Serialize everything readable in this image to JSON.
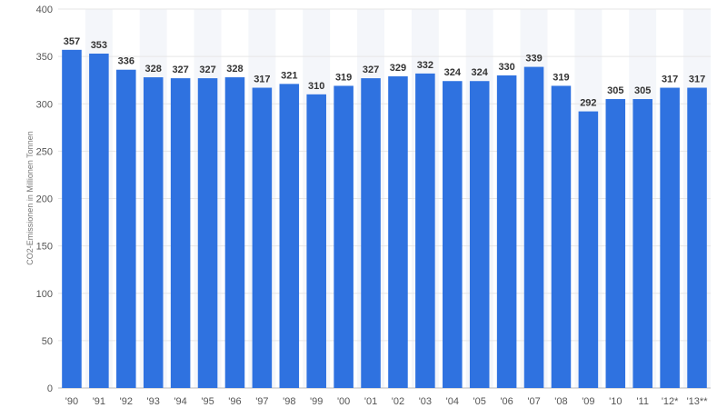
{
  "chart_data": {
    "type": "bar",
    "title": "",
    "xlabel": "",
    "ylabel": "CO2-Emissionen in Millionen Tonnen",
    "categories": [
      "'90",
      "'91",
      "'92",
      "'93",
      "'94",
      "'95",
      "'96",
      "'97",
      "'98",
      "'99",
      "'00",
      "'01",
      "'02",
      "'03",
      "'04",
      "'05",
      "'06",
      "'07",
      "'08",
      "'09",
      "'10",
      "'11",
      "'12*",
      "'13**"
    ],
    "values": [
      357,
      353,
      336,
      328,
      327,
      327,
      328,
      317,
      321,
      310,
      319,
      327,
      329,
      332,
      324,
      324,
      330,
      339,
      319,
      292,
      305,
      305,
      317,
      317
    ],
    "ylim": [
      0,
      400
    ],
    "yticks": [
      0,
      50,
      100,
      150,
      200,
      250,
      300,
      350,
      400
    ],
    "grid": "horizontal",
    "legend": "none",
    "bar_color": "#2f72e0",
    "alternate_band_color": "#f4f6fa",
    "grid_color": "#e6e6e6"
  }
}
